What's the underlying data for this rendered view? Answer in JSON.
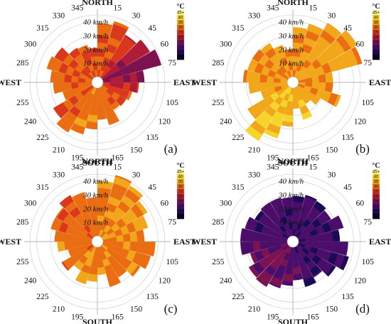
{
  "chart_data": {
    "type": "polar-bar",
    "direction_ticks": [
      "15",
      "30",
      "45",
      "60",
      "75",
      "105",
      "120",
      "135",
      "150",
      "165",
      "195",
      "210",
      "225",
      "240",
      "255",
      "285",
      "300",
      "315",
      "330",
      "345"
    ],
    "cardinal_labels": {
      "north": "NORTH",
      "east": "EAST",
      "south": "SOUTH",
      "west": "WEST"
    },
    "radial_labels": [
      "10 km/h",
      "20 km/h",
      "30 km/h",
      "40 km/h"
    ],
    "radial_max": 45,
    "colorbar": {
      "unit": "°C",
      "ticks": [
        "45+",
        "40",
        "35",
        "30",
        "25",
        "20",
        "15",
        "10",
        "5",
        "0"
      ],
      "range": [
        0,
        45
      ],
      "colors": [
        "#fcf3a2",
        "#f5d52c",
        "#f2a61a",
        "#ea6d12",
        "#d9381c",
        "#b01c38",
        "#7d1250",
        "#4a0e6a",
        "#1c0a55",
        "#05031a"
      ]
    },
    "panels": [
      {
        "label": "(a)",
        "extents": [
          39,
          42,
          36,
          40,
          44,
          30,
          26,
          22,
          20,
          19,
          28,
          23,
          30,
          35,
          38,
          33,
          22,
          28,
          30,
          34,
          32,
          25,
          24,
          21
        ],
        "temps": [
          28,
          27,
          24,
          19,
          15,
          18,
          22,
          26,
          27,
          28,
          30,
          30,
          31,
          31,
          29,
          27,
          30,
          29,
          28,
          28,
          27,
          28,
          27,
          27
        ]
      },
      {
        "label": "(b)",
        "extents": [
          36,
          40,
          46,
          50,
          48,
          25,
          25,
          32,
          19,
          14,
          24,
          15,
          28,
          38,
          45,
          34,
          20,
          28,
          32,
          30,
          30,
          29,
          24,
          20
        ],
        "temps": [
          33,
          33,
          34,
          34,
          34,
          32,
          33,
          33,
          35,
          35,
          37,
          36,
          37,
          38,
          38,
          36,
          33,
          35,
          33,
          33,
          32,
          33,
          33,
          32
        ]
      },
      {
        "label": "(c)",
        "extents": [
          40,
          46,
          43,
          38,
          34,
          30,
          38,
          36,
          32,
          26,
          30,
          20,
          25,
          28,
          20,
          26,
          18,
          25,
          27,
          31,
          31,
          35,
          33,
          28
        ],
        "temps": [
          31,
          32,
          33,
          33,
          33,
          32,
          31,
          31,
          31,
          31,
          31,
          31,
          31,
          34,
          32,
          29,
          30,
          31,
          30,
          29,
          29,
          28,
          30,
          30
        ]
      },
      {
        "label": "(d)",
        "extents": [
          29,
          31,
          30,
          28,
          34,
          30,
          36,
          38,
          32,
          26,
          30,
          24,
          28,
          31,
          34,
          33,
          28,
          34,
          34,
          32,
          28,
          29,
          29,
          28
        ],
        "temps": [
          9,
          9,
          8,
          9,
          8,
          9,
          10,
          8,
          8,
          8,
          9,
          11,
          11,
          12,
          14,
          14,
          12,
          11,
          10,
          9,
          9,
          9,
          9,
          8
        ]
      }
    ]
  }
}
